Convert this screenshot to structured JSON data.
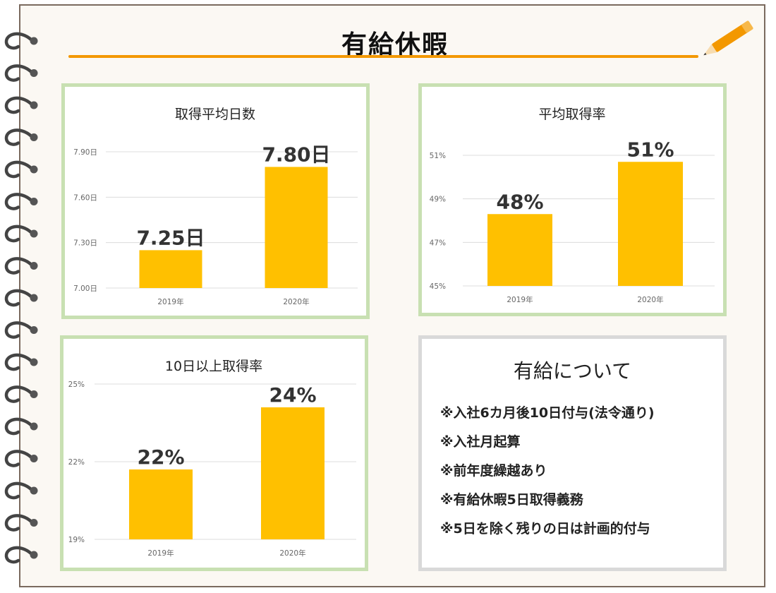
{
  "page": {
    "title": "有給休暇",
    "accent_color": "#f39800",
    "panel_border_color": "#c8e0b2",
    "bar_color": "#ffc000"
  },
  "info": {
    "title": "有給について",
    "items": [
      "※入社6カ月後10日付与(法令通り)",
      "※入社月起算",
      "※前年度繰越あり",
      "※有給休暇5日取得義務",
      "※5日を除く残りの日は計画的付与"
    ]
  },
  "chart_data": [
    {
      "type": "bar",
      "title": "取得平均日数",
      "categories": [
        "2019年",
        "2020年"
      ],
      "values": [
        7.25,
        7.8
      ],
      "data_labels": [
        "7.25日",
        "7.80日"
      ],
      "yticks": [
        "7.00日",
        "7.30日",
        "7.60日",
        "7.90日"
      ],
      "ylim": [
        7.0,
        7.9
      ],
      "grid": true
    },
    {
      "type": "bar",
      "title": "平均取得率",
      "categories": [
        "2019年",
        "2020年"
      ],
      "values": [
        48.3,
        50.7
      ],
      "data_labels": [
        "48%",
        "51%"
      ],
      "yticks": [
        "45%",
        "47%",
        "49%",
        "51%"
      ],
      "ylim": [
        45,
        51
      ],
      "grid": true
    },
    {
      "type": "bar",
      "title": "10日以上取得率",
      "categories": [
        "2019年",
        "2020年"
      ],
      "values": [
        21.7,
        24.1
      ],
      "data_labels": [
        "22%",
        "24%"
      ],
      "yticks": [
        "19%",
        "22%",
        "25%"
      ],
      "ylim": [
        19,
        25
      ],
      "grid": true
    }
  ]
}
